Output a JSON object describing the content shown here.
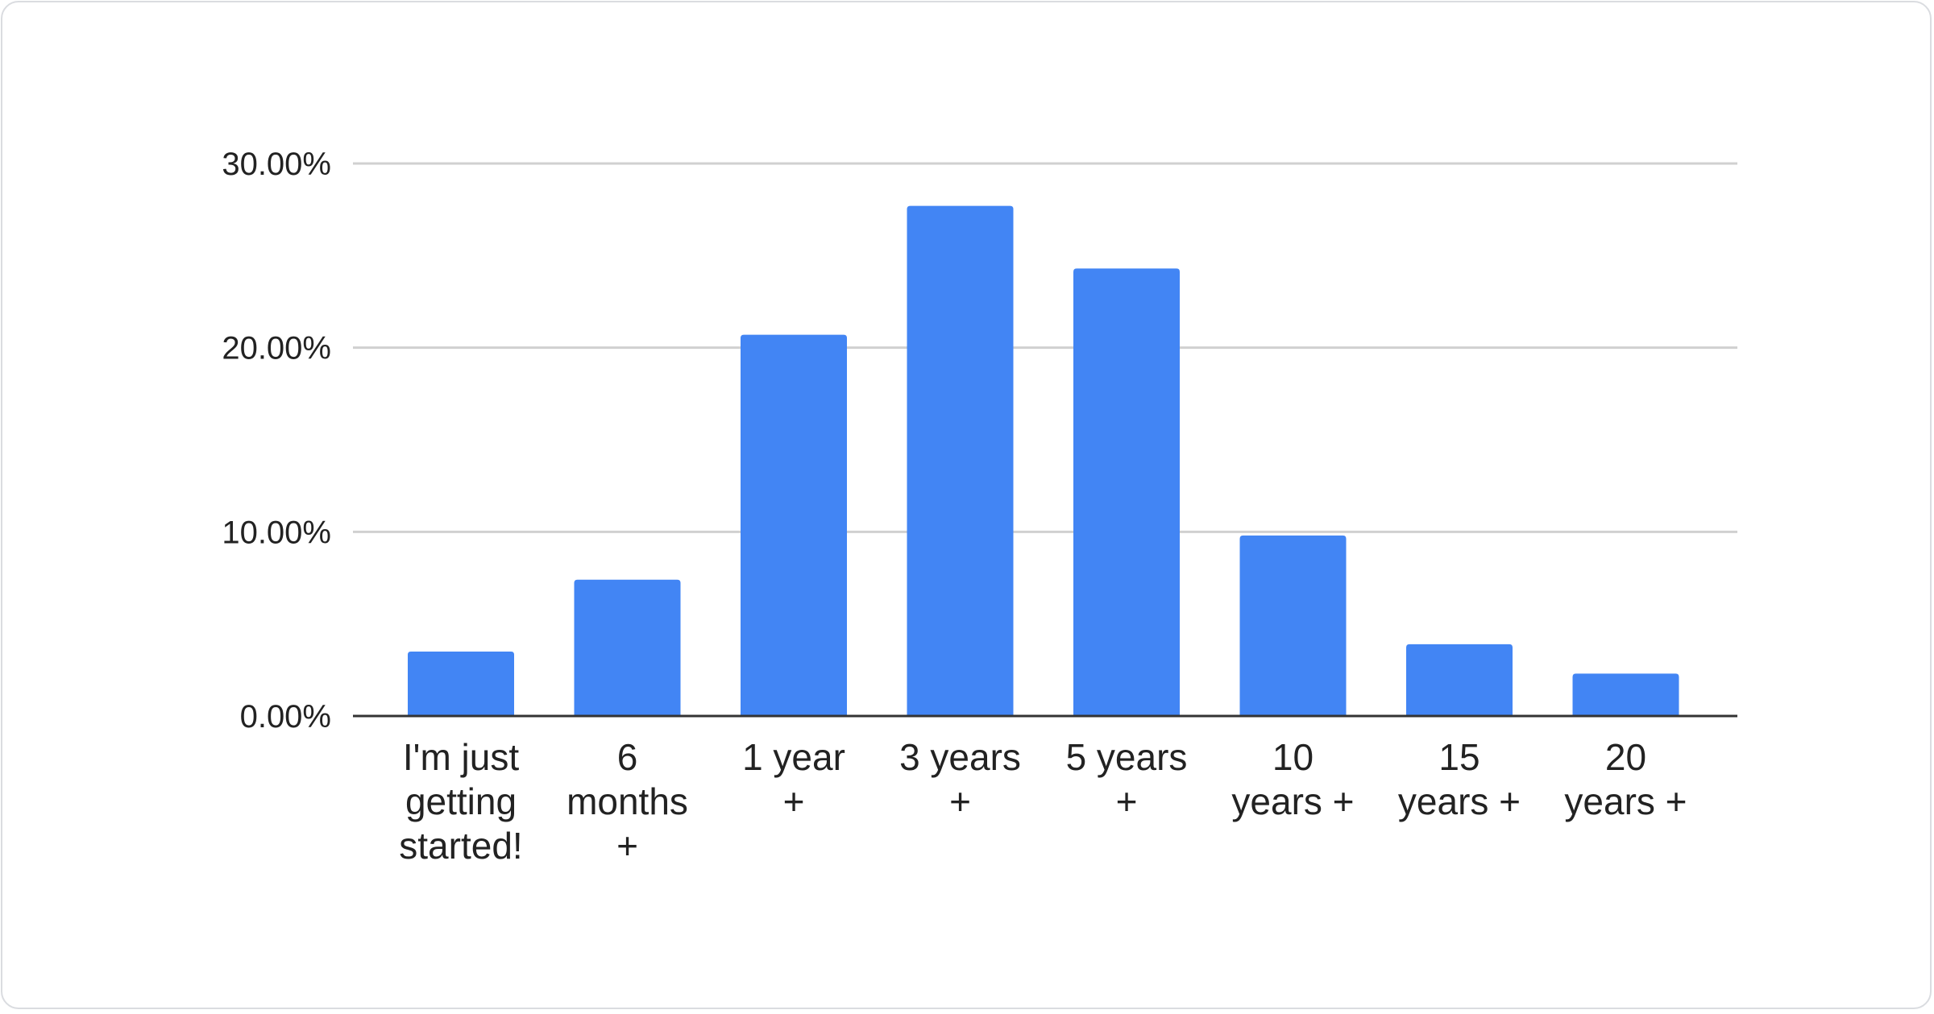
{
  "chart_data": {
    "type": "bar",
    "title": "",
    "xlabel": "",
    "ylabel": "",
    "categories": [
      [
        "I'm just",
        "getting",
        "started!"
      ],
      [
        "6",
        "months",
        "+"
      ],
      [
        "1 year",
        "+"
      ],
      [
        "3 years",
        "+"
      ],
      [
        "5 years",
        "+"
      ],
      [
        "10",
        "years +"
      ],
      [
        "15",
        "years +"
      ],
      [
        "20",
        "years +"
      ]
    ],
    "values": [
      3.5,
      7.4,
      20.7,
      27.7,
      24.3,
      9.8,
      3.9,
      2.3
    ],
    "value_unit": "%",
    "ylim": [
      0,
      30
    ],
    "yticks": [
      0,
      10,
      20,
      30
    ],
    "ytick_labels": [
      "0.00%",
      "10.00%",
      "20.00%",
      "30.00%"
    ],
    "grid": true,
    "legend": "none",
    "colors": {
      "bar": "#4285f4",
      "grid": "#d0d0d0",
      "axis": "#333333"
    }
  }
}
